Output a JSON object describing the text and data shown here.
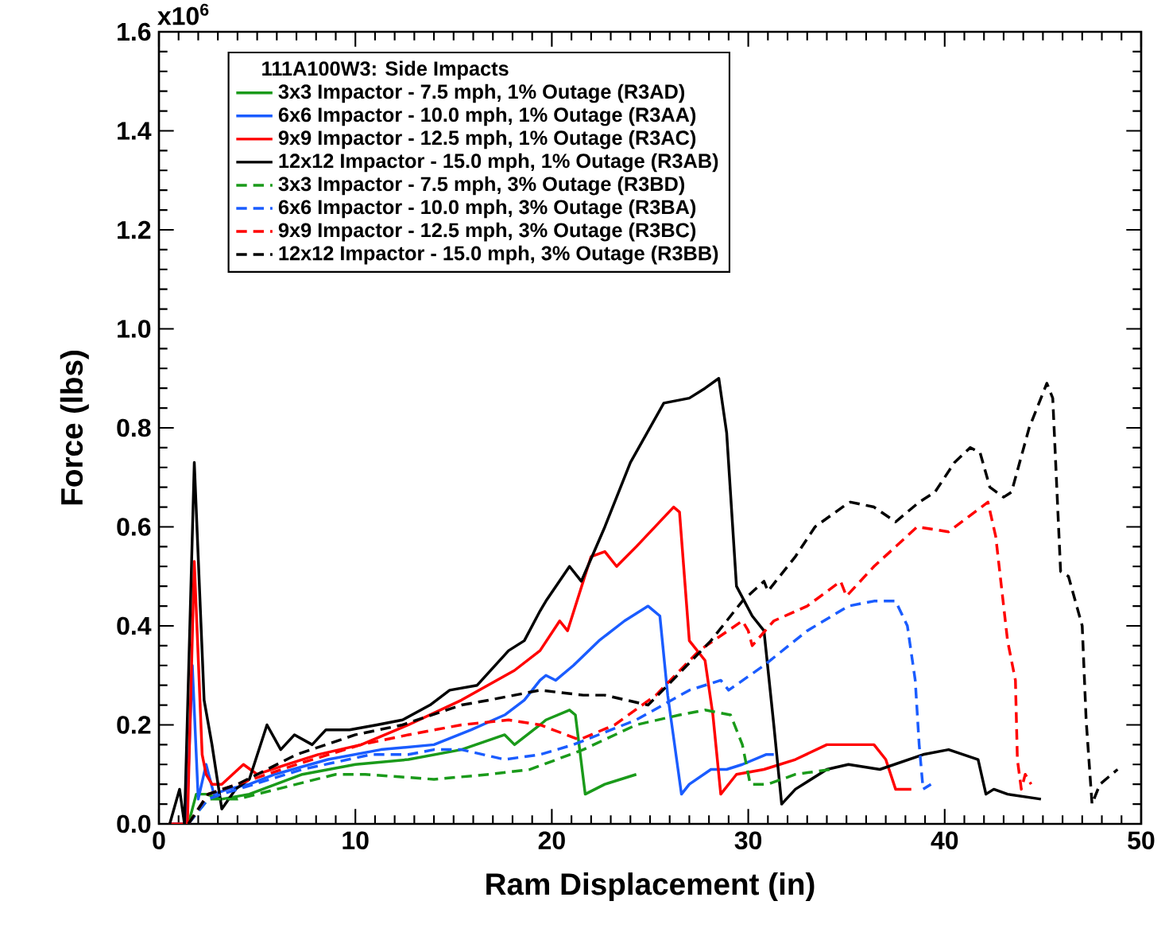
{
  "chart_data": {
    "type": "line",
    "xlabel": "Ram Displacement  (in)",
    "ylabel": "Force (lbs)",
    "legend_title": "111A100W3: Side Impacts",
    "legend": "top left",
    "grid": false,
    "marker": "none",
    "xlim": [
      0,
      50
    ],
    "xticks": [
      0,
      10,
      20,
      30,
      40,
      50
    ],
    "ylim": [
      0,
      1.6
    ],
    "yticks": [
      {
        "value": 0,
        "label": "0.0"
      },
      {
        "value": 0.2,
        "label": "0.2"
      },
      {
        "value": 0.4,
        "label": "0.4"
      },
      {
        "value": 0.6,
        "label": "0.6"
      },
      {
        "value": 0.8,
        "label": "0.8"
      },
      {
        "value": 1.0,
        "label": "1.0"
      },
      {
        "value": 1.2,
        "label": "1.2"
      },
      {
        "value": 1.4,
        "label": "1.4"
      },
      {
        "value": 1.6,
        "label": "1.6"
      }
    ],
    "annotations": [
      "x10$^{6}$"
    ],
    "series": [
      {
        "name": "3x3 Impactor - 7.5 mph, 1% Outage (R3AD)",
        "color": "#1a9a1a",
        "line_style": "solid",
        "x": [
          0.5,
          1.5,
          1.9,
          2.4,
          3.2,
          4.6,
          7.3,
          10.0,
          12.7,
          15.4,
          17.6,
          18.1,
          19.4,
          19.7,
          20.9,
          21.2,
          21.7,
          22.7,
          24.3
        ],
        "values": [
          0,
          0,
          0.06,
          0.06,
          0.05,
          0.06,
          0.1,
          0.12,
          0.13,
          0.15,
          0.18,
          0.16,
          0.2,
          0.21,
          0.23,
          0.22,
          0.06,
          0.08,
          0.1
        ]
      },
      {
        "name": "6x6 Impactor - 10.0 mph, 1% Outage (R3AA)",
        "color": "#1a5cff",
        "line_style": "solid",
        "x": [
          0.5,
          1.4,
          1.7,
          2.0,
          2.4,
          2.8,
          3.5,
          4.6,
          5.9,
          8.6,
          11.3,
          14.0,
          15.9,
          17.6,
          18.6,
          19.4,
          19.7,
          20.2,
          21.1,
          22.4,
          23.7,
          24.9,
          25.5,
          25.9,
          26.6,
          27.0,
          28.1,
          28.9,
          29.7,
          30.9,
          31.3
        ],
        "values": [
          0,
          0,
          0.32,
          0.05,
          0.12,
          0.06,
          0.07,
          0.08,
          0.1,
          0.13,
          0.15,
          0.16,
          0.19,
          0.22,
          0.25,
          0.29,
          0.3,
          0.29,
          0.32,
          0.37,
          0.41,
          0.44,
          0.42,
          0.26,
          0.06,
          0.08,
          0.11,
          0.11,
          0.12,
          0.14,
          0.14
        ]
      },
      {
        "name": "9x9 Impactor - 12.5 mph, 1% Outage (R3AC)",
        "color": "#ff0000",
        "line_style": "solid",
        "x": [
          0.5,
          1.45,
          1.8,
          2.2,
          2.4,
          2.7,
          3.2,
          4.3,
          5.0,
          6.5,
          8.1,
          10.3,
          12.7,
          15.4,
          18.1,
          19.4,
          20.4,
          20.8,
          22.0,
          22.7,
          23.3,
          24.3,
          26.2,
          26.5,
          27.0,
          27.8,
          28.2,
          28.6,
          29.4,
          30.8,
          32.4,
          34.0,
          35.1,
          36.4,
          37.0,
          37.5,
          38.3
        ],
        "values": [
          0,
          0,
          0.53,
          0.14,
          0.1,
          0.08,
          0.08,
          0.12,
          0.1,
          0.12,
          0.14,
          0.16,
          0.2,
          0.25,
          0.31,
          0.35,
          0.41,
          0.39,
          0.54,
          0.55,
          0.52,
          0.56,
          0.64,
          0.63,
          0.37,
          0.33,
          0.22,
          0.06,
          0.1,
          0.11,
          0.13,
          0.16,
          0.16,
          0.16,
          0.13,
          0.07,
          0.07
        ]
      },
      {
        "name": "12x12 Impactor - 15.0 mph, 1% Outage (R3AB)",
        "color": "#000000",
        "line_style": "solid",
        "x": [
          0.55,
          1.05,
          1.3,
          1.8,
          2.3,
          2.7,
          3.2,
          3.9,
          4.6,
          5.5,
          6.2,
          6.9,
          7.8,
          8.5,
          9.7,
          11.1,
          12.4,
          13.8,
          14.8,
          16.2,
          17.8,
          18.6,
          19.4,
          19.7,
          20.9,
          21.5,
          22.7,
          24.0,
          25.7,
          27.0,
          27.8,
          28.5,
          28.9,
          29.4,
          30.2,
          30.8,
          31.3,
          31.7,
          32.4,
          34.0,
          35.1,
          36.7,
          38.9,
          40.2,
          41.7,
          42.1,
          42.5,
          43.2,
          44.9
        ],
        "values": [
          0,
          0.07,
          0,
          0.73,
          0.25,
          0.16,
          0.03,
          0.07,
          0.09,
          0.2,
          0.15,
          0.18,
          0.16,
          0.19,
          0.19,
          0.2,
          0.21,
          0.24,
          0.27,
          0.28,
          0.35,
          0.37,
          0.43,
          0.45,
          0.52,
          0.49,
          0.6,
          0.73,
          0.85,
          0.86,
          0.88,
          0.9,
          0.79,
          0.48,
          0.42,
          0.39,
          0.2,
          0.04,
          0.07,
          0.11,
          0.12,
          0.11,
          0.14,
          0.15,
          0.13,
          0.06,
          0.07,
          0.06,
          0.05
        ]
      },
      {
        "name": "3x3 Impactor - 7.5 mph, 3% Outage (R3BD)",
        "color": "#1a9a1a",
        "line_style": "dashed",
        "x": [
          1.5,
          2.5,
          4.0,
          7.0,
          9.0,
          10.5,
          14.0,
          16.8,
          18.9,
          21.6,
          24.3,
          26.5,
          27.8,
          29.1,
          29.7,
          30.1,
          31.0,
          32.4,
          34.2
        ],
        "values": [
          0,
          0.05,
          0.05,
          0.08,
          0.1,
          0.1,
          0.09,
          0.1,
          0.11,
          0.15,
          0.2,
          0.22,
          0.23,
          0.22,
          0.16,
          0.08,
          0.08,
          0.1,
          0.11
        ]
      },
      {
        "name": "6x6 Impactor - 10.0 mph, 3% Outage (R3BA)",
        "color": "#1a5cff",
        "line_style": "dashed",
        "x": [
          1.5,
          2.5,
          3.2,
          7.3,
          10.8,
          12.7,
          14.0,
          15.4,
          17.6,
          19.4,
          21.1,
          24.3,
          27.0,
          28.6,
          29.0,
          30.8,
          33.0,
          35.1,
          36.4,
          37.5,
          38.1,
          38.5,
          38.7,
          38.9,
          39.3
        ],
        "values": [
          0,
          0.05,
          0.06,
          0.11,
          0.14,
          0.14,
          0.15,
          0.15,
          0.13,
          0.14,
          0.16,
          0.21,
          0.27,
          0.29,
          0.27,
          0.32,
          0.39,
          0.44,
          0.45,
          0.45,
          0.4,
          0.29,
          0.16,
          0.07,
          0.08
        ]
      },
      {
        "name": "9x9 Impactor - 12.5 mph, 3% Outage (R3BC)",
        "color": "#ff0000",
        "line_style": "dashed",
        "x": [
          1.5,
          2.5,
          4.0,
          7.0,
          10.3,
          12.7,
          15.4,
          17.8,
          19.4,
          21.4,
          23.2,
          25.3,
          27.5,
          29.7,
          30.0,
          30.2,
          31.3,
          33.0,
          34.7,
          35.0,
          36.4,
          38.6,
          40.2,
          42.2,
          42.6,
          43.2,
          43.6,
          43.7,
          43.9,
          44.1,
          44.4
        ],
        "values": [
          0,
          0.06,
          0.08,
          0.12,
          0.16,
          0.18,
          0.2,
          0.21,
          0.2,
          0.17,
          0.2,
          0.26,
          0.35,
          0.41,
          0.39,
          0.36,
          0.41,
          0.44,
          0.49,
          0.46,
          0.52,
          0.6,
          0.59,
          0.65,
          0.58,
          0.37,
          0.29,
          0.13,
          0.07,
          0.1,
          0.08
        ]
      },
      {
        "name": "12x12 Impactor - 15.0 mph, 3% Outage (R3BB)",
        "color": "#000000",
        "line_style": "dashed",
        "x": [
          1.5,
          2.5,
          4.0,
          7.0,
          10.0,
          12.4,
          15.4,
          16.8,
          18.1,
          19.4,
          21.6,
          22.7,
          24.9,
          25.9,
          28.1,
          29.7,
          30.8,
          31.0,
          32.4,
          33.4,
          34.8,
          35.2,
          36.4,
          37.5,
          38.7,
          39.5,
          40.5,
          41.3,
          41.8,
          42.3,
          43.0,
          43.4,
          44.3,
          45.2,
          45.5,
          45.9,
          46.3,
          47.0,
          47.2,
          47.5,
          47.9,
          48.8
        ],
        "values": [
          0,
          0.06,
          0.08,
          0.14,
          0.18,
          0.2,
          0.24,
          0.25,
          0.26,
          0.27,
          0.26,
          0.26,
          0.24,
          0.28,
          0.37,
          0.45,
          0.49,
          0.47,
          0.54,
          0.6,
          0.64,
          0.65,
          0.64,
          0.61,
          0.65,
          0.67,
          0.73,
          0.76,
          0.75,
          0.68,
          0.66,
          0.67,
          0.8,
          0.89,
          0.86,
          0.51,
          0.5,
          0.4,
          0.21,
          0.04,
          0.08,
          0.11
        ]
      }
    ]
  }
}
